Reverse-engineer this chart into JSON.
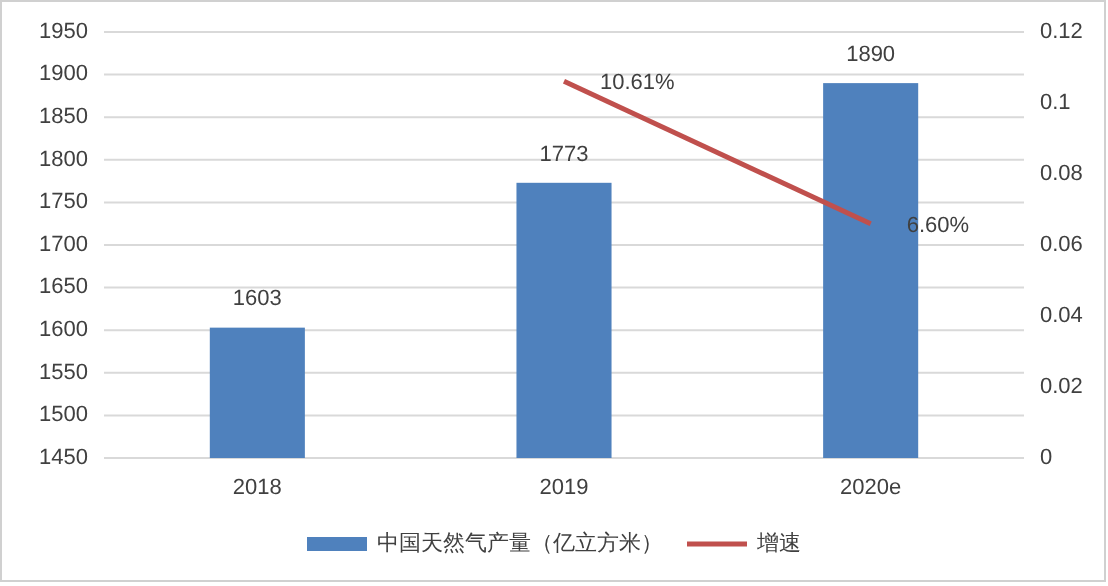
{
  "chart_data": {
    "type": "bar",
    "categories": [
      "2018",
      "2019",
      "2020e"
    ],
    "series": [
      {
        "name": "中国天然气产量（亿立方米）",
        "color": "#4f81bd",
        "values": [
          1603,
          1773,
          1890
        ],
        "value_labels": [
          "1603",
          "1773",
          "1890"
        ]
      },
      {
        "name": "增速",
        "type": "line",
        "axis": "y2",
        "color": "#c0504d",
        "values": [
          null,
          0.1061,
          0.066
        ],
        "value_labels": [
          null,
          "10.61%",
          "6.60%"
        ],
        "marker": "none"
      }
    ],
    "ylim": [
      1450,
      1950
    ],
    "yticks": [
      1450,
      1500,
      1550,
      1600,
      1650,
      1700,
      1750,
      1800,
      1850,
      1900,
      1950
    ],
    "y2lim": [
      0,
      0.12
    ],
    "y2ticks": [
      0,
      0.02,
      0.04,
      0.06,
      0.08,
      0.1,
      0.12
    ],
    "grid": "y",
    "legend": "bottom"
  }
}
